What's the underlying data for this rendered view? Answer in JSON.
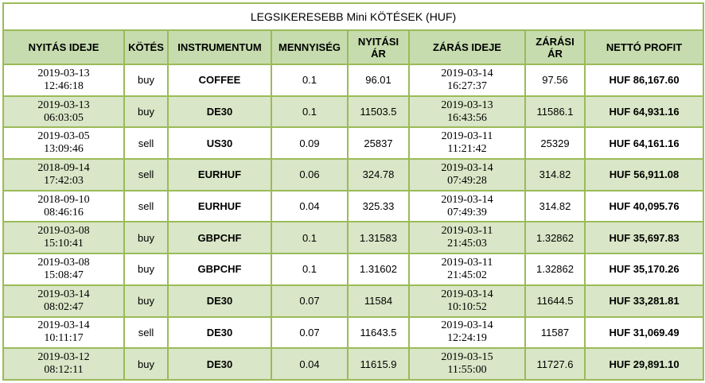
{
  "title": "LEGSIKERESEBB Mini KÖTÉSEK (HUF)",
  "headers": [
    "NYITÁS IDEJE",
    "KÖTÉS",
    "INSTRUMENTUM",
    "MENNYISÉG",
    "NYITÁSI ÁR",
    "ZÁRÁS IDEJE",
    "ZÁRÁSI ÁR",
    "NETTÓ PROFIT"
  ],
  "rows": [
    [
      "2019-03-13 12:46:18",
      "buy",
      "COFFEE",
      "0.1",
      "96.01",
      "2019-03-14 16:27:37",
      "97.56",
      "HUF 86,167.60"
    ],
    [
      "2019-03-13 06:03:05",
      "buy",
      "DE30",
      "0.1",
      "11503.5",
      "2019-03-13 16:43:56",
      "11586.1",
      "HUF 64,931.16"
    ],
    [
      "2019-03-05 13:09:46",
      "sell",
      "US30",
      "0.09",
      "25837",
      "2019-03-11 11:21:42",
      "25329",
      "HUF 64,161.16"
    ],
    [
      "2018-09-14 17:42:03",
      "sell",
      "EURHUF",
      "0.06",
      "324.78",
      "2019-03-14 07:49:28",
      "314.82",
      "HUF 56,911.08"
    ],
    [
      "2018-09-10 08:46:16",
      "sell",
      "EURHUF",
      "0.04",
      "325.33",
      "2019-03-14 07:49:39",
      "314.82",
      "HUF 40,095.76"
    ],
    [
      "2019-03-08 15:10:41",
      "buy",
      "GBPCHF",
      "0.1",
      "1.31583",
      "2019-03-11 21:45:03",
      "1.32862",
      "HUF 35,697.83"
    ],
    [
      "2019-03-08 15:08:47",
      "buy",
      "GBPCHF",
      "0.1",
      "1.31602",
      "2019-03-11 21:45:02",
      "1.32862",
      "HUF 35,170.26"
    ],
    [
      "2019-03-14 08:02:47",
      "buy",
      "DE30",
      "0.07",
      "11584",
      "2019-03-14 10:10:52",
      "11644.5",
      "HUF 33,281.81"
    ],
    [
      "2019-03-14 10:11:17",
      "sell",
      "DE30",
      "0.07",
      "11643.5",
      "2019-03-14 12:24:19",
      "11587",
      "HUF 31,069.49"
    ],
    [
      "2019-03-12 08:12:11",
      "buy",
      "DE30",
      "0.04",
      "11615.9",
      "2019-03-15 11:55:00",
      "11727.6",
      "HUF 29,891.10"
    ]
  ]
}
